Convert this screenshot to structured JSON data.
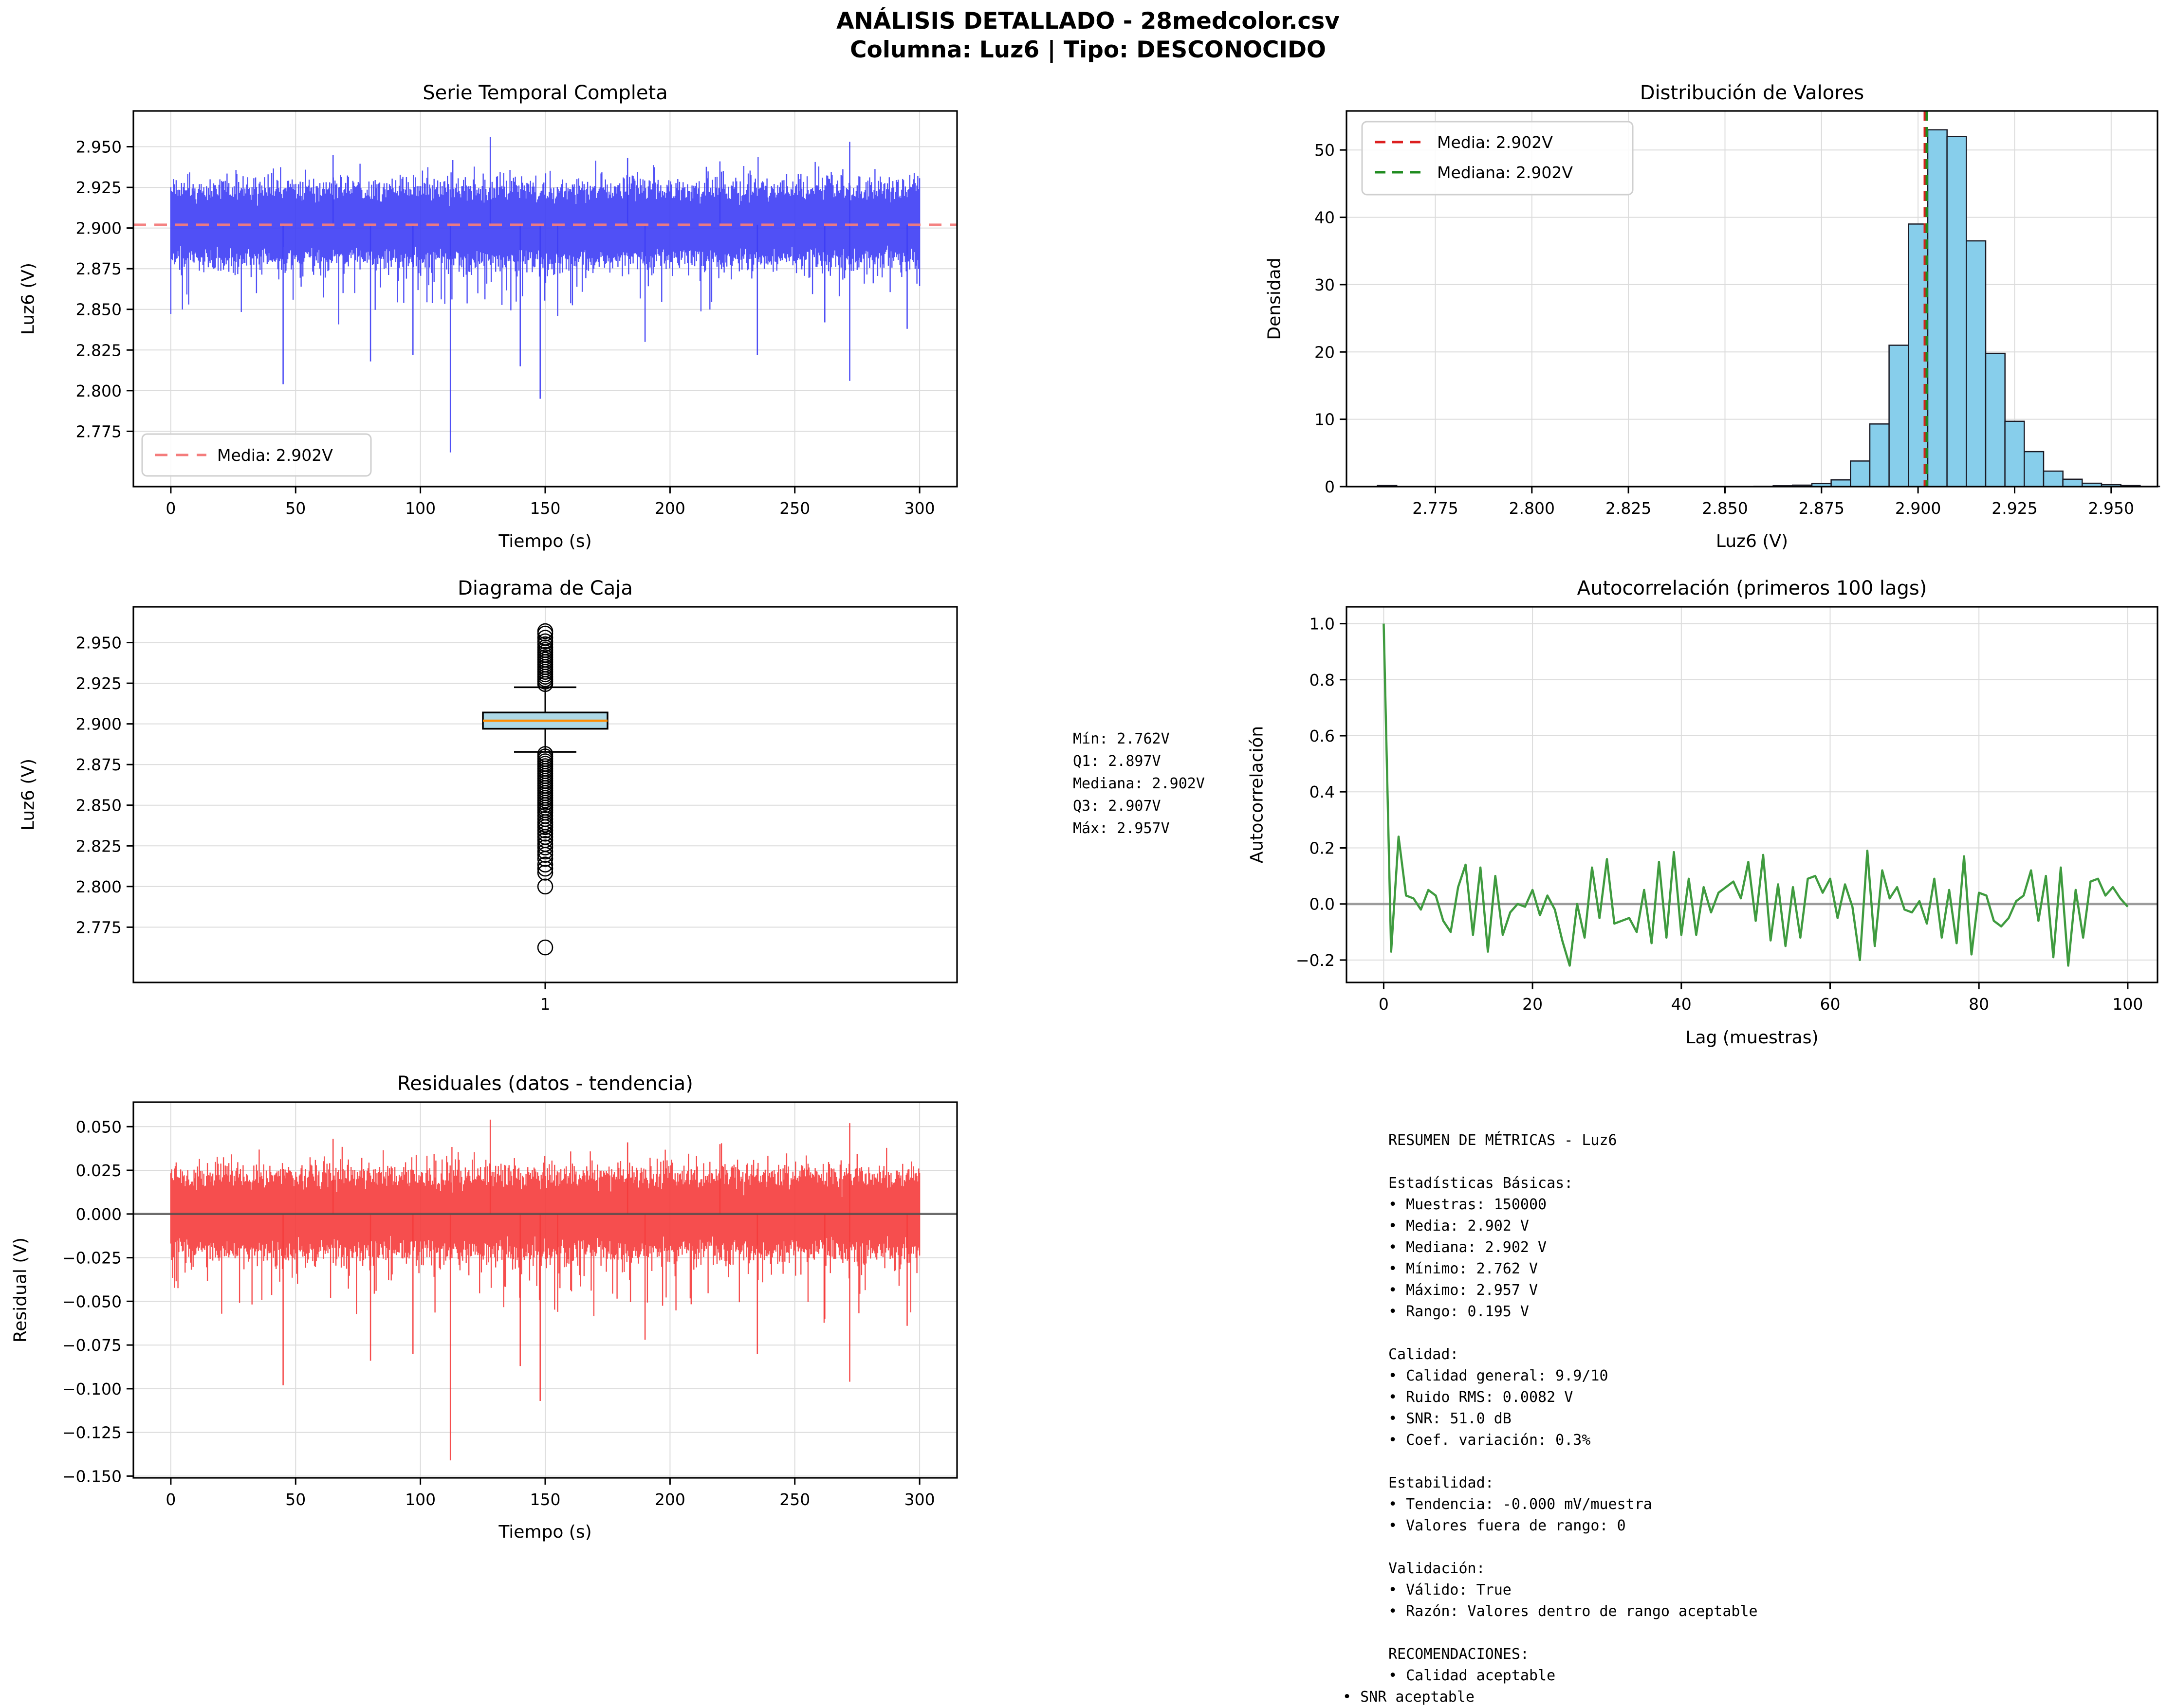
{
  "figure": {
    "title_line1": "ANÁLISIS DETALLADO - 28medcolor.csv",
    "title_line2": "Columna: Luz6 | Tipo: DESCONOCIDO",
    "background": "#ffffff",
    "colors": {
      "grid": "#dcdcdc",
      "spine": "#000000",
      "series_blue": "#3d3df5",
      "mean_salmon": "#f47c7c",
      "hist_fill": "#87ceeb",
      "hist_edge": "#1a1a24",
      "media_red": "#dc1f1f",
      "mediana_green": "#1f8b1f",
      "acf_green": "#3f9b3f",
      "resid_red": "#f53b3b",
      "box_fill": "#add8e6",
      "box_median_orange": "#ff8c00",
      "zero_gray": "#4d4d4d",
      "legend_border": "#cfcfcf"
    }
  },
  "chart_data": {
    "serie": {
      "type": "line",
      "title": "Serie Temporal Completa",
      "xlabel": "Tiempo (s)",
      "ylabel": "Luz6 (V)",
      "legend_label": "Media: 2.902V",
      "x_range": [
        -15,
        315
      ],
      "y_range": [
        2.741,
        2.972
      ],
      "x_ticks": [
        {
          "v": 0,
          "t": "0"
        },
        {
          "v": 50,
          "t": "50"
        },
        {
          "v": 100,
          "t": "100"
        },
        {
          "v": 150,
          "t": "150"
        },
        {
          "v": 200,
          "t": "200"
        },
        {
          "v": 250,
          "t": "250"
        },
        {
          "v": 300,
          "t": "300"
        }
      ],
      "y_ticks": [
        {
          "v": 2.775,
          "t": "2.775"
        },
        {
          "v": 2.8,
          "t": "2.800"
        },
        {
          "v": 2.825,
          "t": "2.825"
        },
        {
          "v": 2.85,
          "t": "2.850"
        },
        {
          "v": 2.875,
          "t": "2.875"
        },
        {
          "v": 2.9,
          "t": "2.900"
        },
        {
          "v": 2.925,
          "t": "2.925"
        },
        {
          "v": 2.95,
          "t": "2.950"
        }
      ],
      "mean": 2.902,
      "noise": {
        "seed": 42,
        "mu": 2.902,
        "sigma": 0.0095,
        "samples_per_col": 60,
        "cols": 840,
        "t0": 0,
        "t1": 300,
        "p_down": 0.08,
        "s_down": 0.028,
        "p_up": 0.15,
        "s_up": 0.01
      },
      "spikes_down": [
        [
          45,
          2.804
        ],
        [
          80,
          2.818
        ],
        [
          97,
          2.822
        ],
        [
          112,
          2.762
        ],
        [
          140,
          2.815
        ],
        [
          148,
          2.795
        ],
        [
          155,
          2.846
        ],
        [
          190,
          2.83
        ],
        [
          235,
          2.822
        ],
        [
          262,
          2.842
        ],
        [
          272,
          2.806
        ],
        [
          295,
          2.838
        ]
      ],
      "spikes_up": [
        [
          65,
          2.945
        ],
        [
          128,
          2.956
        ],
        [
          183,
          2.943
        ],
        [
          220,
          2.941
        ],
        [
          272,
          2.953
        ]
      ]
    },
    "hist": {
      "type": "bar",
      "title": "Distribución de Valores",
      "xlabel": "Luz6 (V)",
      "ylabel": "Densidad",
      "x_range": [
        2.752,
        2.962
      ],
      "y_range": [
        0,
        55.8
      ],
      "x_ticks": [
        {
          "v": 2.775,
          "t": "2.775"
        },
        {
          "v": 2.8,
          "t": "2.800"
        },
        {
          "v": 2.825,
          "t": "2.825"
        },
        {
          "v": 2.85,
          "t": "2.850"
        },
        {
          "v": 2.875,
          "t": "2.875"
        },
        {
          "v": 2.9,
          "t": "2.900"
        },
        {
          "v": 2.925,
          "t": "2.925"
        },
        {
          "v": 2.95,
          "t": "2.950"
        }
      ],
      "y_ticks": [
        {
          "v": 0,
          "t": "0"
        },
        {
          "v": 10,
          "t": "10"
        },
        {
          "v": 20,
          "t": "20"
        },
        {
          "v": 30,
          "t": "30"
        },
        {
          "v": 40,
          "t": "40"
        },
        {
          "v": 50,
          "t": "50"
        }
      ],
      "bin_width": 0.005,
      "bins": [
        [
          2.76,
          0.15
        ],
        [
          2.8575,
          0.05
        ],
        [
          2.8625,
          0.12
        ],
        [
          2.8675,
          0.22
        ],
        [
          2.8725,
          0.45
        ],
        [
          2.8775,
          1.0
        ],
        [
          2.8825,
          3.8
        ],
        [
          2.8875,
          9.3
        ],
        [
          2.8925,
          21
        ],
        [
          2.8975,
          39
        ],
        [
          2.9025,
          53
        ],
        [
          2.9075,
          52
        ],
        [
          2.9125,
          36.5
        ],
        [
          2.9175,
          19.8
        ],
        [
          2.9225,
          9.7
        ],
        [
          2.9275,
          5.2
        ],
        [
          2.9325,
          2.3
        ],
        [
          2.9375,
          1.1
        ],
        [
          2.9425,
          0.5
        ],
        [
          2.9475,
          0.28
        ],
        [
          2.9525,
          0.15
        ],
        [
          2.9575,
          0.05
        ]
      ],
      "media": 2.902,
      "mediana": 2.902,
      "legend": [
        {
          "label": "Media: 2.902V",
          "color": "media_red"
        },
        {
          "label": "Mediana: 2.902V",
          "color": "mediana_green"
        }
      ]
    },
    "box": {
      "type": "boxplot",
      "title": "Diagrama de Caja",
      "ylabel": "Luz6 (V)",
      "x_tick_label": "1",
      "y_range": [
        2.741,
        2.972
      ],
      "y_ticks": [
        {
          "v": 2.775,
          "t": "2.775"
        },
        {
          "v": 2.8,
          "t": "2.800"
        },
        {
          "v": 2.825,
          "t": "2.825"
        },
        {
          "v": 2.85,
          "t": "2.850"
        },
        {
          "v": 2.875,
          "t": "2.875"
        },
        {
          "v": 2.9,
          "t": "2.900"
        },
        {
          "v": 2.925,
          "t": "2.925"
        },
        {
          "v": 2.95,
          "t": "2.950"
        }
      ],
      "min": 2.762,
      "q1": 2.897,
      "median": 2.902,
      "q3": 2.907,
      "max": 2.957,
      "whisker_low": 2.8828,
      "whisker_high": 2.9225,
      "outliers_upper_dense": {
        "from": 2.9245,
        "to": 2.948,
        "step": 0.0015
      },
      "outliers_upper": [
        2.949,
        2.9508,
        2.953,
        2.9555,
        2.957
      ],
      "outliers_lower_dense": {
        "from": 2.8455,
        "to": 2.8815,
        "step": 0.0015
      },
      "outliers_lower": [
        2.8435,
        2.8415,
        2.8395,
        2.838,
        2.8365,
        2.8345,
        2.8325,
        2.8305,
        2.8285,
        2.8262,
        2.824,
        2.8215,
        2.8195,
        2.817,
        2.8135,
        2.811,
        2.8085,
        2.8,
        2.7625
      ]
    },
    "acf": {
      "type": "line",
      "title": "Autocorrelación (primeros 100 lags)",
      "xlabel": "Lag (muestras)",
      "ylabel": "Autocorrelación",
      "x_range": [
        -5,
        104
      ],
      "y_range": [
        -0.28,
        1.06
      ],
      "x_ticks": [
        {
          "v": 0,
          "t": "0"
        },
        {
          "v": 20,
          "t": "20"
        },
        {
          "v": 40,
          "t": "40"
        },
        {
          "v": 60,
          "t": "60"
        },
        {
          "v": 80,
          "t": "80"
        },
        {
          "v": 100,
          "t": "100"
        }
      ],
      "y_ticks": [
        {
          "v": -0.2,
          "t": "−0.2"
        },
        {
          "v": 0,
          "t": "0.0"
        },
        {
          "v": 0.2,
          "t": "0.2"
        },
        {
          "v": 0.4,
          "t": "0.4"
        },
        {
          "v": 0.6,
          "t": "0.6"
        },
        {
          "v": 0.8,
          "t": "0.8"
        },
        {
          "v": 1.0,
          "t": "1.0"
        }
      ],
      "values": [
        1.0,
        -0.17,
        0.24,
        0.03,
        0.02,
        -0.02,
        0.05,
        0.03,
        -0.06,
        -0.1,
        0.06,
        0.14,
        -0.11,
        0.13,
        -0.17,
        0.1,
        -0.11,
        -0.03,
        0.0,
        -0.01,
        0.05,
        -0.04,
        0.03,
        -0.02,
        -0.13,
        -0.22,
        0.0,
        -0.12,
        0.13,
        -0.05,
        0.16,
        -0.07,
        -0.06,
        -0.05,
        -0.1,
        0.05,
        -0.14,
        0.15,
        -0.12,
        0.185,
        -0.11,
        0.09,
        -0.11,
        0.06,
        -0.03,
        0.04,
        0.06,
        0.08,
        0.02,
        0.15,
        -0.06,
        0.175,
        -0.13,
        0.07,
        -0.15,
        0.06,
        -0.12,
        0.09,
        0.1,
        0.04,
        0.09,
        -0.05,
        0.07,
        -0.01,
        -0.2,
        0.19,
        -0.15,
        0.12,
        0.02,
        0.06,
        -0.02,
        -0.03,
        0.01,
        -0.07,
        0.09,
        -0.12,
        0.05,
        -0.14,
        0.17,
        -0.18,
        0.04,
        0.03,
        -0.06,
        -0.08,
        -0.05,
        0.01,
        0.03,
        0.12,
        -0.06,
        0.1,
        -0.19,
        0.13,
        -0.22,
        0.05,
        -0.12,
        0.08,
        0.09,
        0.03,
        0.06,
        0.02,
        -0.01
      ]
    },
    "resid": {
      "type": "line",
      "title": "Residuales (datos - tendencia)",
      "xlabel": "Tiempo (s)",
      "ylabel": "Residual (V)",
      "x_range": [
        -15,
        315
      ],
      "y_range": [
        -0.151,
        0.064
      ],
      "x_ticks": [
        {
          "v": 0,
          "t": "0"
        },
        {
          "v": 50,
          "t": "50"
        },
        {
          "v": 100,
          "t": "100"
        },
        {
          "v": 150,
          "t": "150"
        },
        {
          "v": 200,
          "t": "200"
        },
        {
          "v": 250,
          "t": "250"
        },
        {
          "v": 300,
          "t": "300"
        }
      ],
      "y_ticks": [
        {
          "v": 0.05,
          "t": "0.050"
        },
        {
          "v": 0.025,
          "t": "0.025"
        },
        {
          "v": 0,
          "t": "0.000"
        },
        {
          "v": -0.025,
          "t": "−0.025"
        },
        {
          "v": -0.05,
          "t": "−0.050"
        },
        {
          "v": -0.075,
          "t": "−0.075"
        },
        {
          "v": -0.1,
          "t": "−0.100"
        },
        {
          "v": -0.125,
          "t": "−0.125"
        },
        {
          "v": -0.15,
          "t": "−0.150"
        }
      ],
      "zero_line": 0,
      "noise": {
        "seed": 1234,
        "mu": 0,
        "sigma": 0.0095,
        "samples_per_col": 60,
        "cols": 840,
        "t0": 0,
        "t1": 300,
        "p_down": 0.08,
        "s_down": 0.03,
        "p_up": 0.15,
        "s_up": 0.01
      },
      "spikes_down": [
        [
          45,
          -0.098
        ],
        [
          80,
          -0.084
        ],
        [
          97,
          -0.08
        ],
        [
          112,
          -0.141
        ],
        [
          140,
          -0.087
        ],
        [
          148,
          -0.107
        ],
        [
          155,
          -0.056
        ],
        [
          190,
          -0.072
        ],
        [
          235,
          -0.08
        ],
        [
          262,
          -0.06
        ],
        [
          272,
          -0.096
        ],
        [
          295,
          -0.064
        ]
      ],
      "spikes_up": [
        [
          65,
          0.043
        ],
        [
          128,
          0.054
        ],
        [
          183,
          0.041
        ],
        [
          220,
          0.04
        ],
        [
          272,
          0.052
        ]
      ]
    }
  },
  "stats_text": {
    "lines": [
      "Mín: 2.762V",
      "Q1: 2.897V",
      "Mediana: 2.902V",
      "Q3: 2.907V",
      "Máx: 2.957V"
    ]
  },
  "metrics": {
    "outdent_last": true,
    "lines": [
      "RESUMEN DE MÉTRICAS - Luz6",
      "",
      "Estadísticas Básicas:",
      "• Muestras: 150000",
      "• Media: 2.902 V",
      "• Mediana: 2.902 V",
      "• Mínimo: 2.762 V",
      "• Máximo: 2.957 V",
      "• Rango: 0.195 V",
      "",
      "Calidad:",
      "• Calidad general: 9.9/10",
      "• Ruido RMS: 0.0082 V",
      "• SNR: 51.0 dB",
      "• Coef. variación: 0.3%",
      "",
      "Estabilidad:",
      "• Tendencia: -0.000 mV/muestra",
      "• Valores fuera de rango: 0",
      "",
      "Validación:",
      "• Válido: True",
      "• Razón: Valores dentro de rango aceptable",
      "",
      "RECOMENDACIONES:",
      "• Calidad aceptable",
      "• SNR aceptable"
    ]
  }
}
